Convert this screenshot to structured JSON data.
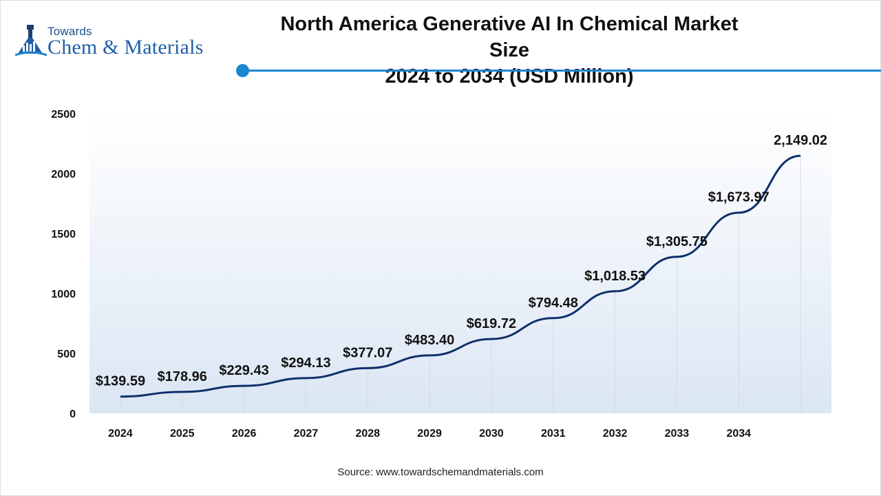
{
  "logo": {
    "line1": "Towards",
    "line2": "Chem & Materials"
  },
  "header": {
    "title_line1": "North America Generative AI In Chemical Market Size",
    "title_line2": "2024 to 2034 (USD Million)"
  },
  "footer": {
    "source": "Source: www.towardschemandmaterials.com"
  },
  "colors": {
    "accent": "#1a87cf",
    "line": "#0f2f6b",
    "area_top": "#ffffff",
    "area_bottom": "#dbe6f4"
  },
  "chart_data": {
    "type": "line",
    "title": "North America Generative AI In Chemical Market Size 2024 to 2034 (USD Million)",
    "categories": [
      "2024",
      "2025",
      "2026",
      "2027",
      "2028",
      "2029",
      "2030",
      "2031",
      "2032",
      "2033",
      "2034",
      ""
    ],
    "values": [
      139.59,
      178.96,
      229.43,
      294.13,
      377.07,
      483.4,
      619.72,
      794.48,
      1018.53,
      1305.75,
      1673.97,
      2149.02
    ],
    "data_labels": [
      "$139.59",
      "$178.96",
      "$229.43",
      "$294.13",
      "$377.07",
      "$483.40",
      "$619.72",
      "$794.48",
      "$1,018.53",
      "$1,305.75",
      "$1,673.97",
      "2,149.02"
    ],
    "yticks": [
      0,
      500,
      1000,
      1500,
      2000,
      2500
    ],
    "ylim": [
      0,
      2500
    ],
    "xlabel": "",
    "ylabel": "",
    "grid": "vertical drop lines"
  }
}
